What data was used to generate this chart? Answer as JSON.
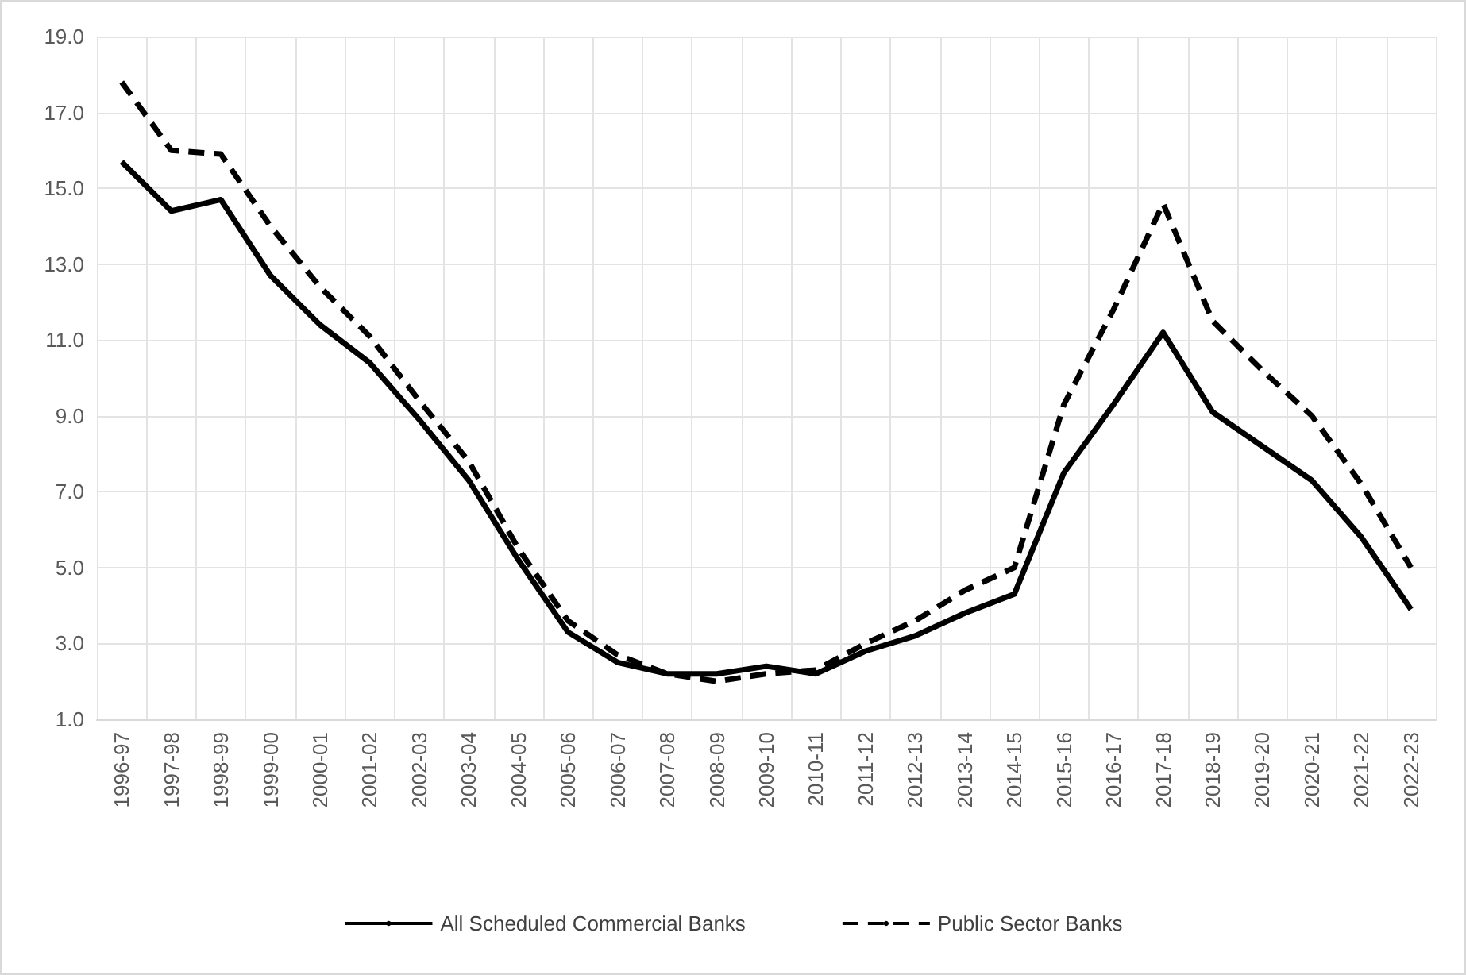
{
  "chart_data": {
    "type": "line",
    "categories": [
      "1996-97",
      "1997-98",
      "1998-99",
      "1999-00",
      "2000-01",
      "2001-02",
      "2002-03",
      "2003-04",
      "2004-05",
      "2005-06",
      "2006-07",
      "2007-08",
      "2008-09",
      "2009-10",
      "2010-11",
      "2011-12",
      "2012-13",
      "2013-14",
      "2014-15",
      "2015-16",
      "2016-17",
      "2017-18",
      "2018-19",
      "2019-20",
      "2020-21",
      "2021-22",
      "2022-23"
    ],
    "series": [
      {
        "name": "All Scheduled Commercial Banks",
        "color": "#000000",
        "line_style": "solid",
        "values": [
          15.7,
          14.4,
          14.7,
          12.7,
          11.4,
          10.4,
          8.9,
          7.3,
          5.2,
          3.3,
          2.5,
          2.2,
          2.2,
          2.4,
          2.2,
          2.8,
          3.2,
          3.8,
          4.3,
          7.5,
          9.3,
          11.2,
          9.1,
          8.2,
          7.3,
          5.8,
          3.9
        ]
      },
      {
        "name": "Public Sector Banks",
        "color": "#000000",
        "line_style": "dashed",
        "values": [
          17.8,
          16.0,
          15.9,
          14.0,
          12.4,
          11.1,
          9.4,
          7.8,
          5.5,
          3.6,
          2.7,
          2.2,
          2.0,
          2.2,
          2.3,
          3.0,
          3.6,
          4.4,
          5.0,
          9.3,
          11.8,
          14.6,
          11.5,
          10.2,
          9.0,
          7.2,
          5.0
        ]
      }
    ],
    "ylim": [
      1,
      19
    ],
    "yticks": [
      {
        "value": 1,
        "label": "1.0"
      },
      {
        "value": 3,
        "label": "3.0"
      },
      {
        "value": 5,
        "label": "5.0"
      },
      {
        "value": 7,
        "label": "7.0"
      },
      {
        "value": 9,
        "label": "9.0"
      },
      {
        "value": 11,
        "label": "11.0"
      },
      {
        "value": 13,
        "label": "13.0"
      },
      {
        "value": 15,
        "label": "15.0"
      },
      {
        "value": 17,
        "label": "17.0"
      },
      {
        "value": 19,
        "label": "19.0"
      }
    ],
    "grid": true,
    "legend": "bottom",
    "marker": "none"
  }
}
